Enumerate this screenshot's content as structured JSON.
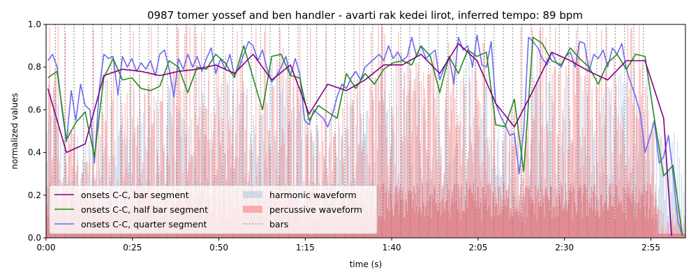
{
  "chart_data": {
    "type": "line",
    "title": "0987 tomer yossef and ben handler - avarti rak kedei lirot, inferred tempo: 89 bpm",
    "xlabel": "time (s)",
    "ylabel": "normalized values",
    "xlim": [
      0,
      185
    ],
    "ylim": [
      0,
      1
    ],
    "xticks": [
      0,
      25,
      50,
      75,
      100,
      125,
      150,
      175
    ],
    "xtick_labels": [
      "0:00",
      "0:25",
      "0:50",
      "1:15",
      "1:40",
      "2:05",
      "2:30",
      "2:55"
    ],
    "yticks": [
      0,
      0.2,
      0.4,
      0.6,
      0.8,
      1.0
    ],
    "ytick_labels": [
      "0.0",
      "0.2",
      "0.4",
      "0.6",
      "0.8",
      "1.0"
    ],
    "bar_interval_s": 2.7,
    "bars_end_s": 175,
    "legend_position": "lower-left",
    "colors": {
      "bar_segment": "#800080",
      "half_bar_segment": "#228b22",
      "quarter_segment": "#6b6bf0",
      "harmonic": "#b0c4de",
      "percussive": "#ff7f7f",
      "bars": "#808080"
    },
    "series": [
      {
        "name": "onsets C-C, bar segment",
        "key": "bar",
        "x": [
          0.5,
          5.9,
          11.3,
          16.7,
          22.1,
          27.5,
          32.9,
          38.3,
          43.7,
          49.1,
          54.5,
          59.9,
          65.3,
          70.7,
          76.1,
          81.5,
          86.9,
          92.3,
          97.7,
          103.1,
          108.5,
          113.9,
          119.3,
          124.7,
          130.1,
          135.5,
          140.9,
          146.3,
          151.7,
          157.1,
          162.5,
          167.9,
          173.3,
          178.7,
          181.0
        ],
        "values": [
          0.7,
          0.4,
          0.44,
          0.76,
          0.79,
          0.78,
          0.76,
          0.78,
          0.79,
          0.81,
          0.77,
          0.86,
          0.74,
          0.81,
          0.58,
          0.72,
          0.69,
          0.74,
          0.81,
          0.81,
          0.86,
          0.77,
          0.91,
          0.83,
          0.63,
          0.52,
          0.69,
          0.87,
          0.83,
          0.78,
          0.74,
          0.83,
          0.83,
          0.56,
          0.01
        ]
      },
      {
        "name": "onsets C-C, half bar segment",
        "key": "half",
        "x": [
          0.5,
          3.2,
          5.9,
          8.6,
          11.3,
          14.0,
          16.7,
          19.4,
          22.1,
          24.8,
          27.5,
          30.2,
          32.9,
          35.6,
          38.3,
          41.0,
          43.7,
          46.4,
          49.1,
          51.8,
          54.5,
          57.2,
          59.9,
          62.6,
          65.3,
          68.0,
          70.7,
          73.4,
          76.1,
          78.8,
          81.5,
          84.2,
          86.9,
          89.6,
          92.3,
          95.0,
          97.7,
          100.4,
          103.1,
          105.8,
          108.5,
          111.2,
          113.9,
          116.6,
          119.3,
          122.0,
          124.7,
          127.4,
          130.1,
          132.8,
          135.5,
          138.2,
          140.9,
          143.6,
          146.3,
          149.0,
          151.7,
          154.4,
          157.1,
          159.8,
          162.5,
          165.2,
          167.9,
          170.6,
          173.3,
          176.0,
          178.7,
          181.4,
          184.1
        ],
        "values": [
          0.75,
          0.78,
          0.46,
          0.54,
          0.59,
          0.38,
          0.75,
          0.84,
          0.74,
          0.75,
          0.7,
          0.69,
          0.71,
          0.83,
          0.8,
          0.68,
          0.8,
          0.79,
          0.86,
          0.82,
          0.75,
          0.9,
          0.75,
          0.6,
          0.85,
          0.86,
          0.76,
          0.75,
          0.55,
          0.62,
          0.59,
          0.56,
          0.77,
          0.7,
          0.77,
          0.72,
          0.79,
          0.82,
          0.83,
          0.81,
          0.9,
          0.85,
          0.68,
          0.85,
          0.77,
          0.88,
          0.85,
          0.87,
          0.53,
          0.52,
          0.65,
          0.31,
          0.94,
          0.91,
          0.83,
          0.81,
          0.89,
          0.84,
          0.8,
          0.72,
          0.82,
          0.86,
          0.79,
          0.86,
          0.85,
          0.56,
          0.29,
          0.34,
          0.01
        ]
      },
      {
        "name": "onsets C-C, quarter segment",
        "key": "quarter",
        "x": [
          0.5,
          1.9,
          3.2,
          4.6,
          5.9,
          7.3,
          8.6,
          10.0,
          11.3,
          12.7,
          14.0,
          15.4,
          16.7,
          18.1,
          19.4,
          20.8,
          22.1,
          23.5,
          24.8,
          26.2,
          27.5,
          28.9,
          30.2,
          31.6,
          32.9,
          34.3,
          35.6,
          37.0,
          38.3,
          39.7,
          41.0,
          42.4,
          43.7,
          45.1,
          46.4,
          47.8,
          49.1,
          50.5,
          51.8,
          53.2,
          54.5,
          55.9,
          57.2,
          58.6,
          59.9,
          61.3,
          62.6,
          64.0,
          65.3,
          66.7,
          68.0,
          69.4,
          70.7,
          72.1,
          73.4,
          74.8,
          76.1,
          77.5,
          78.8,
          80.2,
          81.5,
          82.9,
          84.2,
          85.6,
          86.9,
          88.3,
          89.6,
          91.0,
          92.3,
          93.7,
          95.0,
          96.4,
          97.7,
          99.1,
          100.4,
          101.8,
          103.1,
          104.5,
          105.8,
          107.2,
          108.5,
          109.9,
          111.2,
          112.6,
          113.9,
          115.3,
          116.6,
          118.0,
          119.3,
          120.7,
          122.0,
          123.4,
          124.7,
          126.1,
          127.4,
          128.8,
          130.1,
          131.5,
          132.8,
          134.2,
          135.5,
          136.9,
          138.2,
          139.6,
          140.9,
          142.3,
          143.6,
          145.0,
          146.3,
          147.7,
          149.0,
          150.4,
          151.7,
          153.1,
          154.4,
          155.8,
          157.1,
          158.5,
          159.8,
          161.2,
          162.5,
          163.9,
          165.2,
          166.6,
          167.9,
          169.3,
          170.6,
          172.0,
          173.3,
          174.7,
          176.0,
          177.4,
          178.7,
          180.1,
          181.4,
          182.8,
          184.1
        ],
        "values": [
          0.83,
          0.86,
          0.8,
          0.6,
          0.45,
          0.69,
          0.55,
          0.72,
          0.62,
          0.6,
          0.35,
          0.7,
          0.86,
          0.84,
          0.85,
          0.67,
          0.85,
          0.8,
          0.84,
          0.78,
          0.82,
          0.79,
          0.83,
          0.76,
          0.86,
          0.88,
          0.79,
          0.66,
          0.84,
          0.79,
          0.86,
          0.8,
          0.85,
          0.78,
          0.84,
          0.89,
          0.77,
          0.84,
          0.79,
          0.86,
          0.76,
          0.8,
          0.86,
          0.92,
          0.9,
          0.83,
          0.88,
          0.79,
          0.73,
          0.76,
          0.8,
          0.85,
          0.76,
          0.84,
          0.77,
          0.55,
          0.53,
          0.6,
          0.58,
          0.56,
          0.52,
          0.58,
          0.66,
          0.72,
          0.7,
          0.75,
          0.78,
          0.74,
          0.8,
          0.82,
          0.84,
          0.86,
          0.83,
          0.9,
          0.84,
          0.87,
          0.83,
          0.85,
          0.94,
          0.85,
          0.9,
          0.84,
          0.86,
          0.88,
          0.74,
          0.8,
          0.85,
          0.72,
          0.94,
          0.88,
          0.9,
          0.8,
          0.95,
          0.81,
          0.8,
          0.92,
          0.63,
          0.57,
          0.53,
          0.48,
          0.49,
          0.3,
          0.5,
          0.94,
          0.92,
          0.89,
          0.84,
          0.81,
          0.87,
          0.82,
          0.8,
          0.85,
          0.87,
          0.8,
          0.92,
          0.91,
          0.78,
          0.86,
          0.84,
          0.88,
          0.8,
          0.89,
          0.86,
          0.91,
          0.79,
          0.72,
          0.66,
          0.58,
          0.4,
          0.47,
          0.55,
          0.35,
          0.38,
          0.48,
          0.3,
          0.08,
          0.01
        ]
      },
      {
        "name": "harmonic waveform",
        "key": "harmonic"
      },
      {
        "name": "percussive waveform",
        "key": "percussive"
      },
      {
        "name": "bars",
        "key": "bars"
      }
    ]
  }
}
